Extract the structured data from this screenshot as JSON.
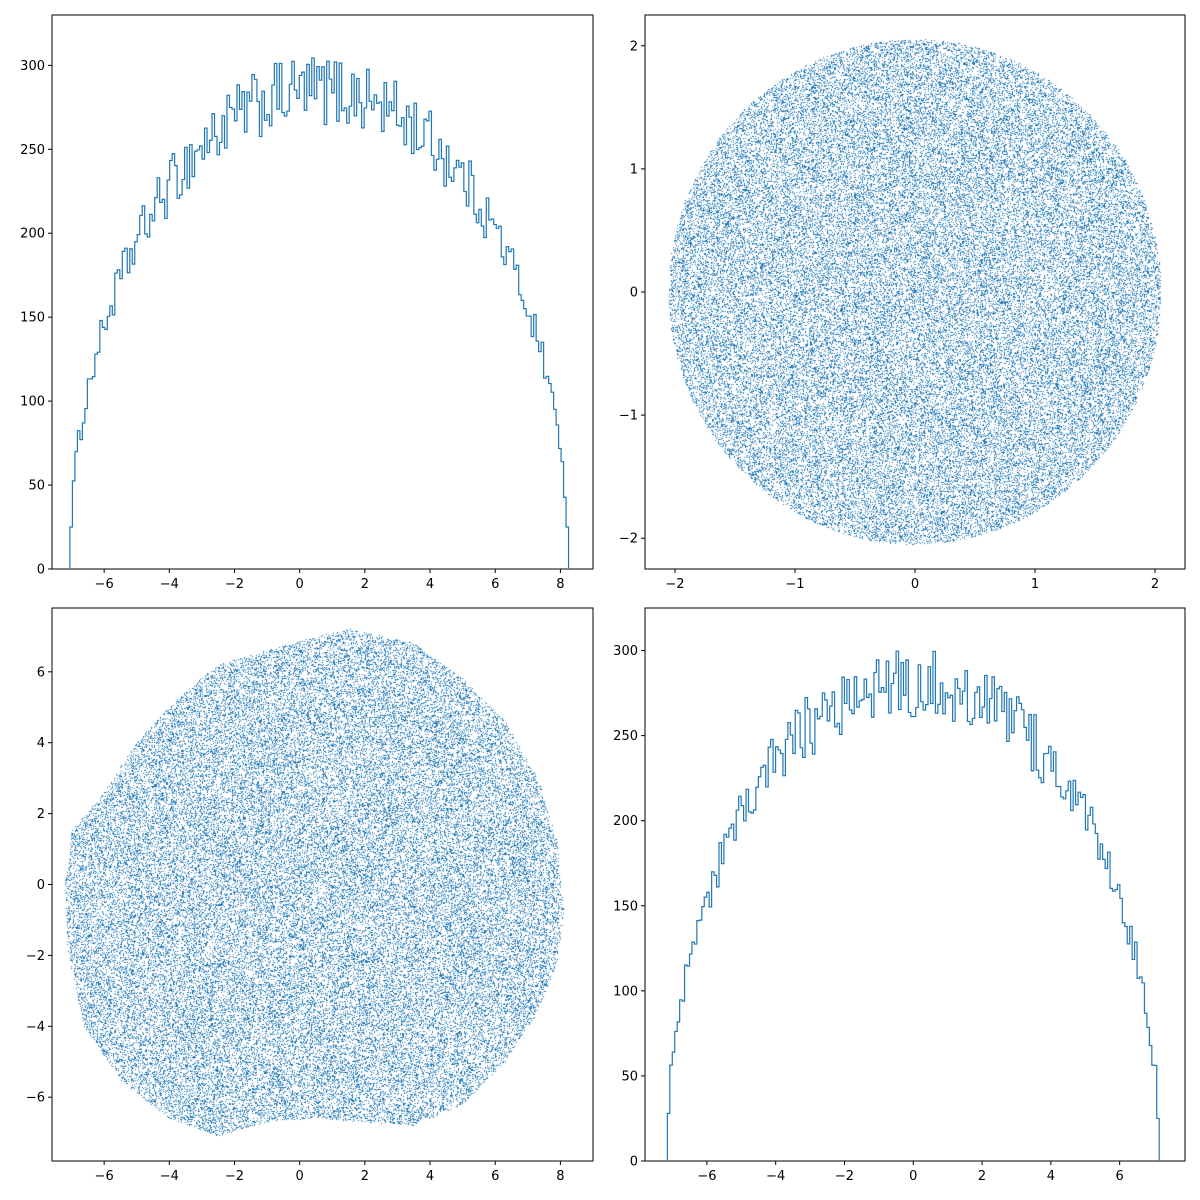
{
  "figure": {
    "background": "#ffffff",
    "series_color": "#1f77b4"
  },
  "chart_data": [
    {
      "type": "histogram",
      "position": "top-left",
      "title": "",
      "xlabel": "",
      "ylabel": "",
      "xlim": [
        -7.6,
        9.0
      ],
      "ylim": [
        0,
        330
      ],
      "xticks": [
        -6,
        -4,
        -2,
        0,
        2,
        4,
        6,
        8
      ],
      "yticks": [
        0,
        50,
        100,
        150,
        200,
        250,
        300
      ],
      "x_range": [
        -7.05,
        8.25
      ],
      "bin_count": 200,
      "shape": "semicircle-like, rising from ~55 at left edge to ~270-315 plateau, falling to ~25 at right edge",
      "peak_value": 315,
      "min_value": 25,
      "grid": false,
      "legend": "none"
    },
    {
      "type": "scatter",
      "position": "top-right",
      "title": "",
      "xlabel": "",
      "ylabel": "",
      "xlim": [
        -2.25,
        2.25
      ],
      "ylim": [
        -2.25,
        2.25
      ],
      "xticks": [
        -2,
        -1,
        0,
        1,
        2
      ],
      "yticks": [
        -2,
        -1,
        0,
        1,
        2
      ],
      "shape": "uniform disk",
      "center": [
        0,
        0
      ],
      "radius": 2.05,
      "marker": "pixel",
      "grid": false,
      "legend": "none"
    },
    {
      "type": "scatter",
      "position": "bottom-left",
      "title": "",
      "xlabel": "",
      "ylabel": "",
      "xlim": [
        -7.6,
        9.0
      ],
      "ylim": [
        -7.8,
        7.8
      ],
      "xticks": [
        -6,
        -4,
        -2,
        0,
        2,
        4,
        6,
        8
      ],
      "yticks": [
        -6,
        -4,
        -2,
        0,
        2,
        4,
        6
      ],
      "shape": "deformed disk",
      "boundary": [
        [
          8.1,
          -0.8
        ],
        [
          7.9,
          1.2
        ],
        [
          7.3,
          3.0
        ],
        [
          6.3,
          4.6
        ],
        [
          5.0,
          5.8
        ],
        [
          3.5,
          6.8
        ],
        [
          1.5,
          7.2
        ],
        [
          0.2,
          6.9
        ],
        [
          -1.0,
          6.6
        ],
        [
          -2.5,
          6.2
        ],
        [
          -3.8,
          5.2
        ],
        [
          -5.0,
          4.0
        ],
        [
          -6.0,
          2.6
        ],
        [
          -7.0,
          1.5
        ],
        [
          -7.2,
          0.0
        ],
        [
          -7.1,
          -2.0
        ],
        [
          -6.6,
          -4.0
        ],
        [
          -5.5,
          -5.5
        ],
        [
          -4.0,
          -6.6
        ],
        [
          -2.5,
          -7.1
        ],
        [
          -1.0,
          -6.7
        ],
        [
          0.5,
          -6.6
        ],
        [
          2.0,
          -6.7
        ],
        [
          3.5,
          -6.8
        ],
        [
          5.0,
          -6.2
        ],
        [
          6.3,
          -5.0
        ],
        [
          7.3,
          -3.6
        ],
        [
          7.9,
          -2.2
        ]
      ],
      "marker": "pixel",
      "grid": false,
      "legend": "none"
    },
    {
      "type": "histogram",
      "position": "bottom-right",
      "title": "",
      "xlabel": "",
      "ylabel": "",
      "xlim": [
        -7.8,
        7.9
      ],
      "ylim": [
        0,
        325
      ],
      "xticks": [
        -6,
        -4,
        -2,
        0,
        2,
        4,
        6
      ],
      "yticks": [
        0,
        50,
        100,
        150,
        200,
        250,
        300
      ],
      "x_range": [
        -7.15,
        7.15
      ],
      "bin_count": 200,
      "shape": "semicircle-like, rising from ~28 at left edge to ~270-312 plateau near -1..1, falling to ~25 at right edge",
      "peak_value": 312,
      "min_value": 25,
      "grid": false,
      "legend": "none"
    }
  ]
}
